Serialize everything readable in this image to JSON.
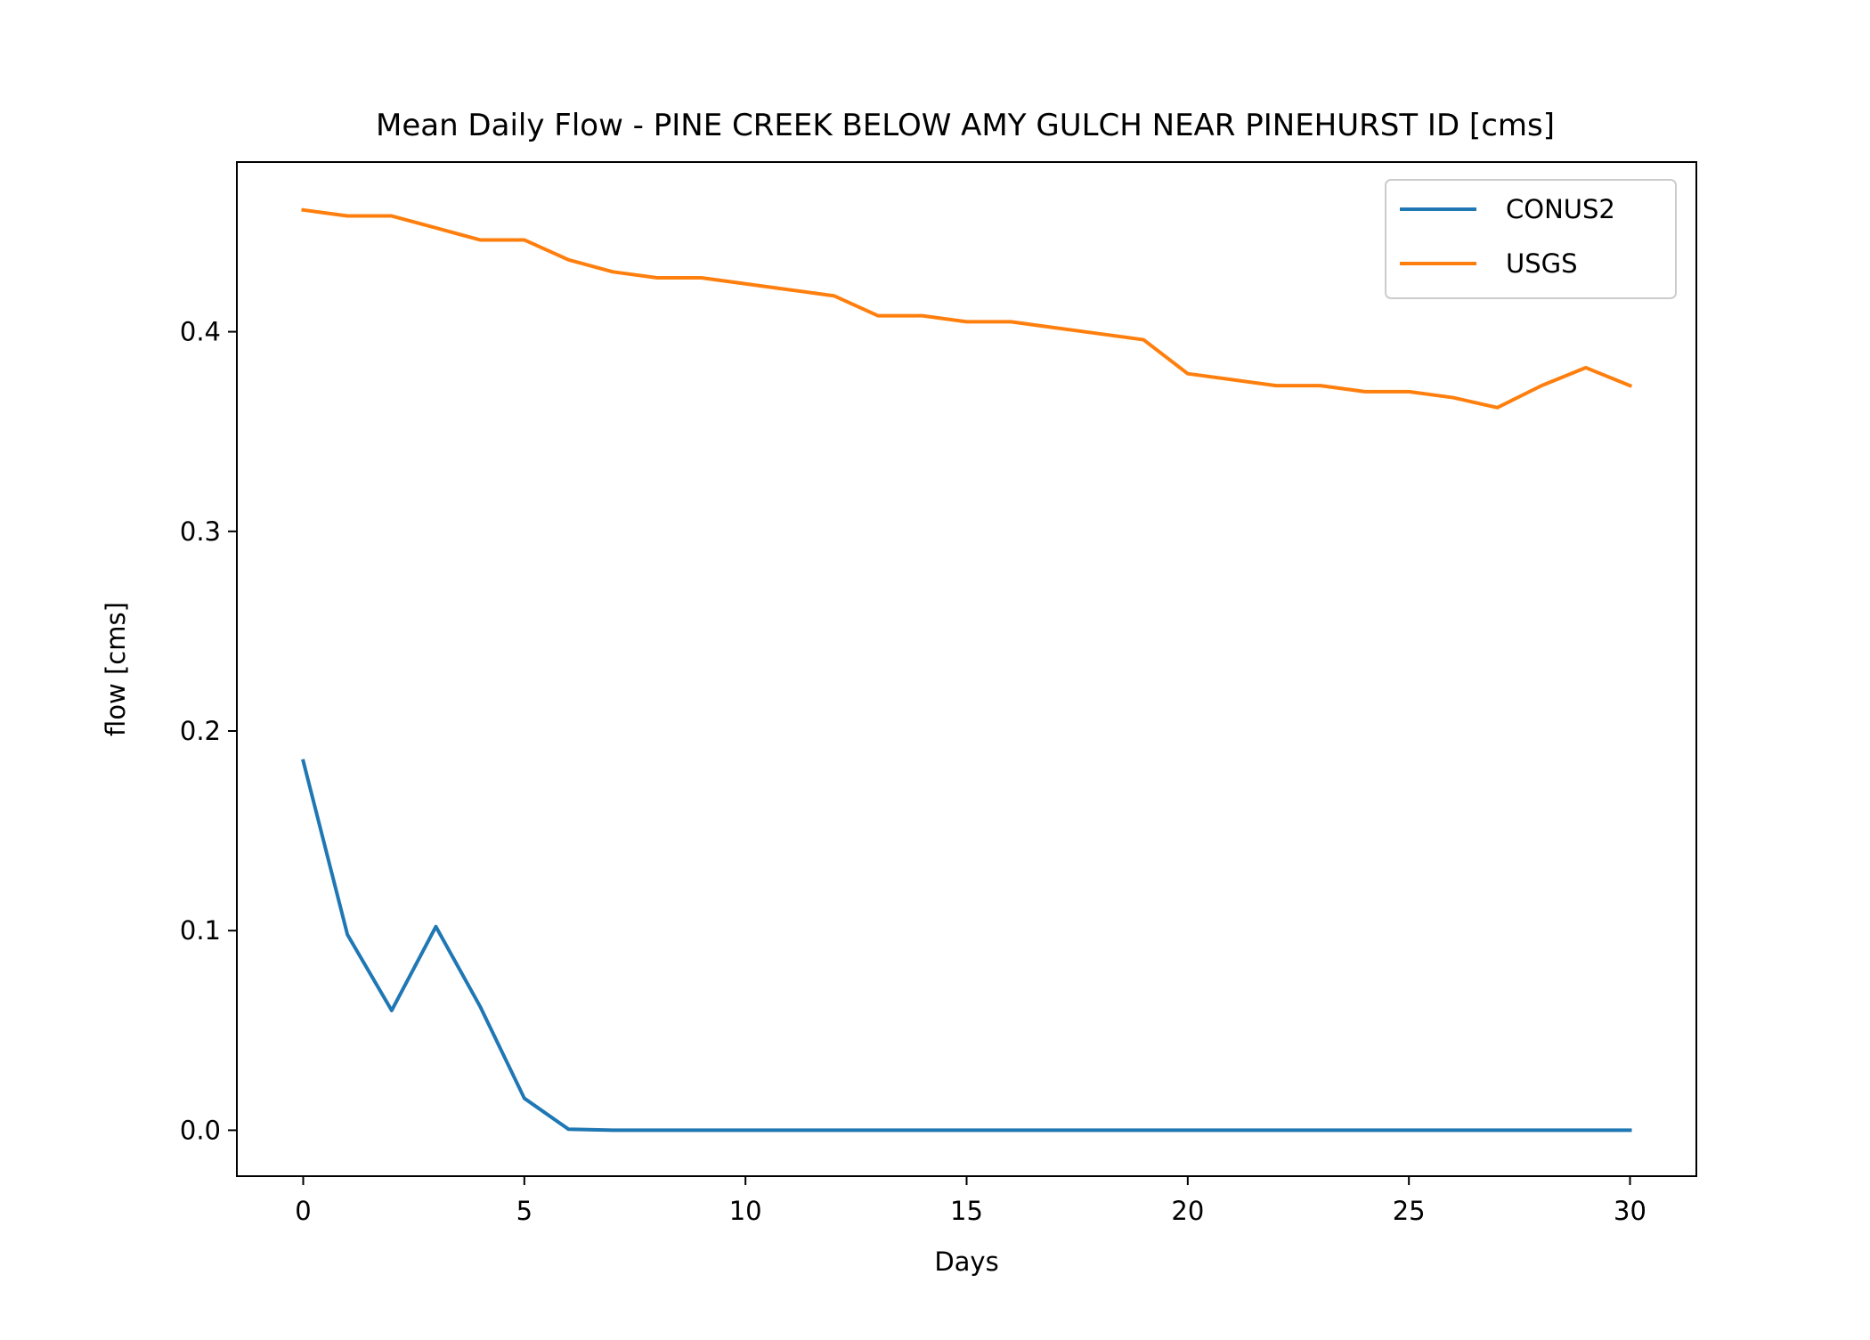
{
  "chart_data": {
    "type": "line",
    "title": "Mean Daily Flow - PINE CREEK BELOW AMY GULCH NEAR PINEHURST ID [cms]",
    "xlabel": "Days",
    "ylabel": "flow [cms]",
    "xlim": [
      -1.5,
      31.5
    ],
    "ylim": [
      -0.023,
      0.485
    ],
    "xticks": [
      0,
      5,
      10,
      15,
      20,
      25,
      30
    ],
    "xtick_labels": [
      "0",
      "5",
      "10",
      "15",
      "20",
      "25",
      "30"
    ],
    "yticks": [
      0.0,
      0.1,
      0.2,
      0.3,
      0.4
    ],
    "ytick_labels": [
      "0.0",
      "0.1",
      "0.2",
      "0.3",
      "0.4"
    ],
    "grid": false,
    "legend_position": "top-right",
    "x": [
      0,
      1,
      2,
      3,
      4,
      5,
      6,
      7,
      8,
      9,
      10,
      11,
      12,
      13,
      14,
      15,
      16,
      17,
      18,
      19,
      20,
      21,
      22,
      23,
      24,
      25,
      26,
      27,
      28,
      29,
      30
    ],
    "series": [
      {
        "name": "CONUS2",
        "color": "#1f77b4",
        "values": [
          0.185,
          0.098,
          0.06,
          0.102,
          0.062,
          0.016,
          0.0005,
          0.0,
          0.0,
          0.0,
          0.0,
          0.0,
          0.0,
          0.0,
          0.0,
          0.0,
          0.0,
          0.0,
          0.0,
          0.0,
          0.0,
          0.0,
          0.0,
          0.0,
          0.0,
          0.0,
          0.0,
          0.0,
          0.0,
          0.0,
          0.0
        ]
      },
      {
        "name": "USGS",
        "color": "#ff7f0e",
        "values": [
          0.461,
          0.458,
          0.458,
          0.452,
          0.446,
          0.446,
          0.436,
          0.43,
          0.427,
          0.427,
          0.424,
          0.421,
          0.418,
          0.408,
          0.408,
          0.405,
          0.405,
          0.402,
          0.399,
          0.396,
          0.379,
          0.376,
          0.373,
          0.373,
          0.37,
          0.37,
          0.367,
          0.362,
          0.373,
          0.382,
          0.373
        ]
      }
    ]
  }
}
